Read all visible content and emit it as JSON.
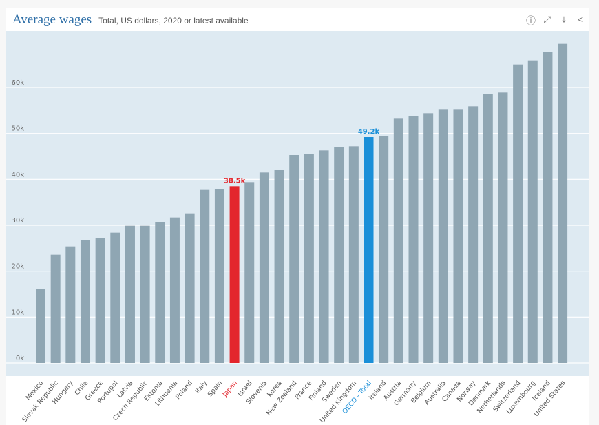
{
  "header": {
    "title": "Average wages",
    "subtitle": "Total, US dollars, 2020 or latest available"
  },
  "toolbar": {
    "icons": [
      "info-icon",
      "fullscreen-icon",
      "download-icon",
      "share-icon"
    ]
  },
  "chart_data": {
    "type": "bar",
    "title": "Average wages",
    "subtitle": "Total, US dollars, 2020 or latest available",
    "ylim": [
      0,
      70000
    ],
    "yticks": [
      0,
      10000,
      20000,
      30000,
      40000,
      50000,
      60000
    ],
    "ytick_labels": [
      "0k",
      "10k",
      "20k",
      "30k",
      "40k",
      "50k",
      "60k"
    ],
    "grid": true,
    "categories": [
      "Mexico",
      "Slovak Republic",
      "Hungary",
      "Chile",
      "Greece",
      "Portugal",
      "Latvia",
      "Czech Republic",
      "Estonia",
      "Lithuania",
      "Poland",
      "Italy",
      "Spain",
      "Japan",
      "Israel",
      "Slovenia",
      "Korea",
      "New Zealand",
      "France",
      "Finland",
      "Sweden",
      "United Kingdom",
      "OECD - Total",
      "Ireland",
      "Austria",
      "Germany",
      "Belgium",
      "Australia",
      "Canada",
      "Norway",
      "Denmark",
      "Netherlands",
      "Switzerland",
      "Luxembourg",
      "Iceland",
      "United States"
    ],
    "values": [
      16200,
      23600,
      25400,
      26800,
      27200,
      28400,
      29900,
      29900,
      30700,
      31700,
      32600,
      37700,
      37900,
      38500,
      39400,
      41500,
      42000,
      45300,
      45600,
      46300,
      47100,
      47200,
      49200,
      49500,
      53200,
      53800,
      54400,
      55300,
      55300,
      55900,
      58500,
      58900,
      65000,
      65900,
      67700,
      69500
    ],
    "highlights": [
      {
        "category": "Japan",
        "label": "38.5k",
        "color": "#e3262d"
      },
      {
        "category": "OECD - Total",
        "label": "49.2k",
        "color": "#1a8fd8"
      }
    ],
    "colors": {
      "default": "#8fa6b3",
      "background": "#deeaf2"
    }
  }
}
